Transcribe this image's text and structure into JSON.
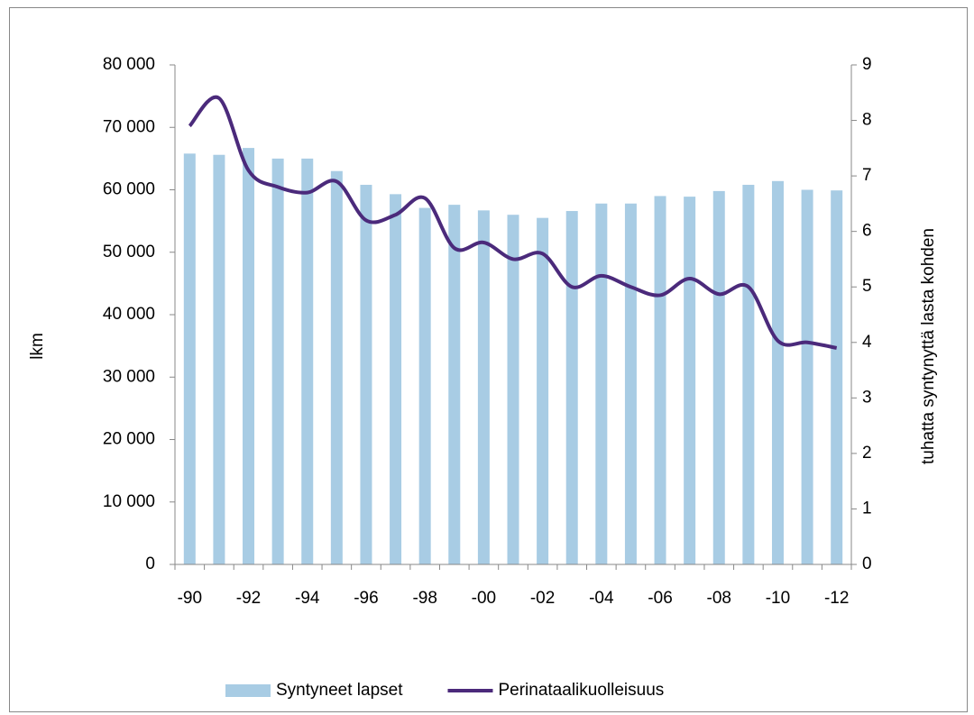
{
  "chart_data": {
    "type": "bar",
    "categories": [
      "-90",
      null,
      "-92",
      null,
      "-94",
      null,
      "-96",
      null,
      "-98",
      null,
      "-00",
      null,
      "-02",
      null,
      "-04",
      null,
      "-06",
      null,
      "-08",
      null,
      "-10",
      null,
      "-12"
    ],
    "series": [
      {
        "name": "Syntyneet lapset",
        "type": "bar",
        "color": "#a8cce4",
        "values": [
          65800,
          65600,
          66700,
          65000,
          65000,
          63000,
          60800,
          59300,
          57100,
          57600,
          56700,
          56000,
          55500,
          56600,
          57800,
          57800,
          59000,
          58900,
          59800,
          60800,
          61400,
          60000,
          59900
        ]
      },
      {
        "name": "Perinataalikuolleisuus",
        "type": "line",
        "axis": "y2",
        "color": "#4b2a7b",
        "values": [
          7.9,
          8.4,
          7.1,
          6.8,
          6.7,
          6.9,
          6.2,
          6.3,
          6.6,
          5.7,
          5.8,
          5.5,
          5.6,
          5.0,
          5.2,
          5.0,
          4.85,
          5.15,
          4.87,
          5.0,
          4.03,
          4.0,
          3.9
        ]
      }
    ],
    "y_label": "lkm",
    "y2_label": "tuhatta syntynyttä lasta kohden",
    "ylim": [
      0,
      80000
    ],
    "yticks": [
      0,
      {
        "value": 10000,
        "label": "10 000"
      },
      {
        "value": 20000,
        "label": "20 000"
      },
      {
        "value": 30000,
        "label": "30 000"
      },
      {
        "value": 40000,
        "label": "40 000"
      },
      {
        "value": 50000,
        "label": "50 000"
      },
      {
        "value": 60000,
        "label": "60 000"
      },
      {
        "value": 70000,
        "label": "70 000"
      },
      {
        "value": 80000,
        "label": "80 000"
      }
    ],
    "y2lim": [
      0,
      9
    ],
    "y2ticks": [
      0,
      1,
      2,
      3,
      4,
      5,
      6,
      7,
      8,
      9
    ],
    "legend": "bottom"
  }
}
